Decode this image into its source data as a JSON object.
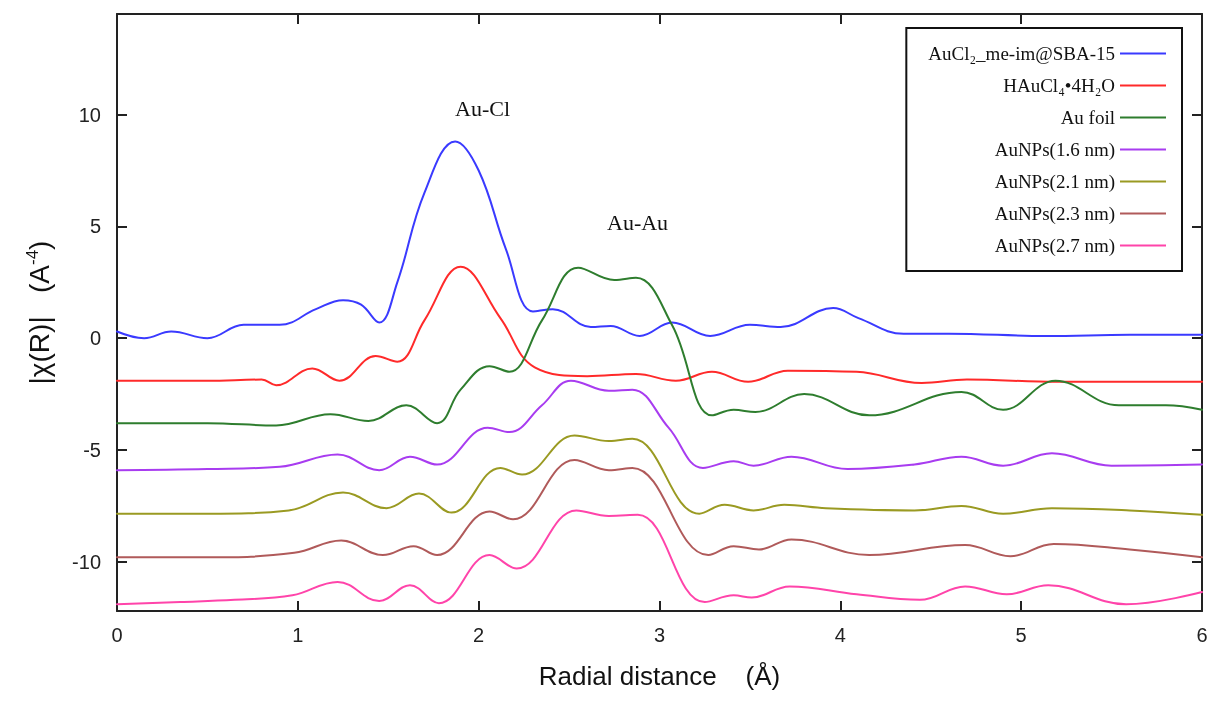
{
  "chart_data": {
    "type": "line",
    "xlabel": "Radial distance    (Å)",
    "ylabel": "|χ(R)|   (A$^{-4}$)",
    "xlim": [
      0,
      6
    ],
    "xticks": [
      0,
      1,
      2,
      3,
      4,
      5,
      6
    ],
    "ylim": [
      -12.2,
      14.5
    ],
    "yticks": [
      -10,
      -5,
      0,
      5,
      10
    ],
    "grid": false,
    "legend": "top right",
    "marker": "none",
    "line_style": "solid",
    "annotations": [
      "Au-Cl",
      "Au-Au"
    ],
    "series": [
      {
        "name": "AuCl₂_me-im@SBA-15",
        "color": "#3a3aff",
        "x": [
          0,
          0.15,
          0.3,
          0.5,
          0.7,
          0.9,
          1.1,
          1.25,
          1.35,
          1.45,
          1.55,
          1.7,
          1.87,
          2.0,
          2.15,
          2.3,
          2.41,
          2.62,
          2.73,
          2.89,
          3.07,
          3.28,
          3.5,
          3.67,
          3.96,
          4.1,
          4.35,
          4.6,
          5.14,
          5.6,
          6.0
        ],
        "values": [
          0.3,
          0.0,
          0.3,
          0.0,
          0.6,
          0.6,
          1.3,
          1.7,
          1.5,
          0.7,
          2.5,
          6.5,
          8.8,
          7.5,
          4.0,
          1.2,
          1.3,
          0.5,
          0.55,
          0.1,
          0.7,
          0.1,
          0.6,
          0.5,
          1.35,
          0.9,
          0.2,
          0.2,
          0.1,
          0.15,
          0.15
        ]
      },
      {
        "name": "HAuCl₄•4H₂O",
        "color": "#ff2a2a",
        "x": [
          0,
          0.5,
          0.8,
          0.88,
          1.08,
          1.23,
          1.43,
          1.55,
          1.7,
          1.9,
          2.12,
          2.31,
          2.6,
          2.87,
          3.09,
          3.29,
          3.49,
          3.71,
          4.09,
          4.45,
          4.7,
          5.2,
          6.0
        ],
        "values": [
          -1.9,
          -1.9,
          -1.85,
          -2.1,
          -1.35,
          -1.9,
          -0.8,
          -1.05,
          0.8,
          3.2,
          0.9,
          -1.3,
          -1.7,
          -1.6,
          -1.9,
          -1.5,
          -1.95,
          -1.45,
          -1.5,
          -2.0,
          -1.85,
          -1.95,
          -1.95
        ]
      },
      {
        "name": "Au foil",
        "color": "#2e7d2e",
        "x": [
          0,
          0.5,
          0.88,
          1.18,
          1.39,
          1.6,
          1.77,
          1.9,
          2.06,
          2.17,
          2.35,
          2.55,
          2.75,
          2.87,
          3.07,
          3.29,
          3.41,
          3.53,
          3.8,
          4.16,
          4.67,
          4.9,
          5.19,
          5.54,
          5.8,
          6.0
        ],
        "values": [
          -3.8,
          -3.8,
          -3.9,
          -3.4,
          -3.7,
          -3.0,
          -3.8,
          -2.3,
          -1.25,
          -1.5,
          0.8,
          3.15,
          2.6,
          2.7,
          0.58,
          -3.45,
          -3.2,
          -3.3,
          -2.5,
          -3.45,
          -2.4,
          -3.2,
          -1.9,
          -3.0,
          -3.0,
          -3.2
        ]
      },
      {
        "name": "AuNPs(1.6 nm)",
        "color": "#a83cf0",
        "x": [
          0,
          0.5,
          0.9,
          1.22,
          1.45,
          1.62,
          1.77,
          2.05,
          2.17,
          2.35,
          2.51,
          2.72,
          2.85,
          3.05,
          3.24,
          3.41,
          3.52,
          3.73,
          4.04,
          4.41,
          4.67,
          4.9,
          5.17,
          5.5,
          6.0
        ],
        "values": [
          -5.9,
          -5.85,
          -5.75,
          -5.2,
          -5.9,
          -5.3,
          -5.65,
          -4.0,
          -4.2,
          -3.0,
          -1.9,
          -2.35,
          -2.3,
          -4.0,
          -5.8,
          -5.5,
          -5.7,
          -5.3,
          -5.85,
          -5.65,
          -5.3,
          -5.7,
          -5.15,
          -5.7,
          -5.65
        ]
      },
      {
        "name": "AuNPs(2.1 nm)",
        "color": "#9a9a22",
        "x": [
          0,
          0.5,
          0.95,
          1.25,
          1.49,
          1.67,
          1.85,
          2.12,
          2.24,
          2.53,
          2.72,
          2.85,
          3.22,
          3.36,
          3.52,
          3.69,
          3.92,
          4.41,
          4.67,
          4.9,
          5.17,
          5.6,
          6.0
        ],
        "values": [
          -7.85,
          -7.85,
          -7.7,
          -6.9,
          -7.6,
          -6.95,
          -7.8,
          -5.8,
          -6.1,
          -4.35,
          -4.6,
          -4.5,
          -7.85,
          -7.45,
          -7.7,
          -7.45,
          -7.6,
          -7.7,
          -7.5,
          -7.85,
          -7.6,
          -7.7,
          -7.9
        ]
      },
      {
        "name": "AuNPs(2.3 nm)",
        "color": "#b05a5a",
        "x": [
          0,
          0.5,
          0.98,
          1.24,
          1.47,
          1.64,
          1.77,
          2.06,
          2.19,
          2.53,
          2.72,
          2.85,
          3.27,
          3.41,
          3.55,
          3.73,
          4.16,
          4.69,
          4.94,
          5.18,
          5.6,
          6.0
        ],
        "values": [
          -9.8,
          -9.8,
          -9.6,
          -9.05,
          -9.7,
          -9.3,
          -9.7,
          -7.75,
          -8.1,
          -5.45,
          -5.9,
          -5.8,
          -9.7,
          -9.3,
          -9.45,
          -9.0,
          -9.7,
          -9.25,
          -9.75,
          -9.2,
          -9.45,
          -9.8
        ]
      },
      {
        "name": "AuNPs(2.7 nm)",
        "color": "#ff44aa",
        "x": [
          0,
          0.35,
          0.65,
          0.97,
          1.22,
          1.45,
          1.62,
          1.78,
          2.06,
          2.21,
          2.54,
          2.72,
          2.88,
          3.25,
          3.41,
          3.51,
          3.72,
          4.09,
          4.44,
          4.69,
          4.92,
          5.15,
          5.58,
          6.0
        ],
        "values": [
          -11.9,
          -11.8,
          -11.7,
          -11.5,
          -10.9,
          -11.75,
          -11.05,
          -11.85,
          -9.7,
          -10.3,
          -7.7,
          -7.95,
          -7.9,
          -11.8,
          -11.5,
          -11.6,
          -11.1,
          -11.45,
          -11.7,
          -11.1,
          -11.45,
          -11.05,
          -11.9,
          -11.35
        ]
      }
    ]
  }
}
